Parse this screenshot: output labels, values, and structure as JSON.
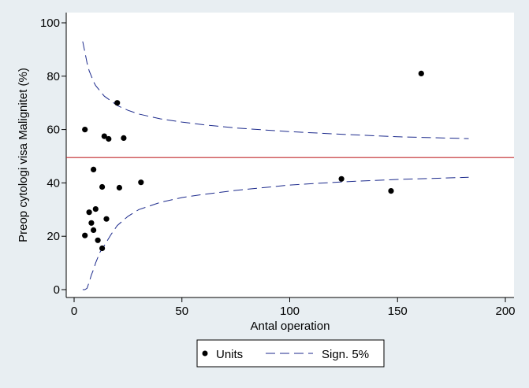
{
  "chart_data": {
    "type": "scatter",
    "title": "",
    "xlabel": "Antal operation",
    "ylabel": "Preop cytologi visa Malignitet (%)",
    "xlim": [
      0,
      200
    ],
    "ylim": [
      0,
      100
    ],
    "xticks": [
      0,
      50,
      100,
      150,
      200
    ],
    "yticks": [
      0,
      20,
      40,
      60,
      80,
      100
    ],
    "grid": false,
    "legend_position": "bottom-center",
    "reference_line": {
      "y": 49.5,
      "color": "#c0282c"
    },
    "series": [
      {
        "name": "Units",
        "kind": "scatter",
        "color": "#000000",
        "points": [
          {
            "x": 5,
            "y": 60
          },
          {
            "x": 14,
            "y": 57.5
          },
          {
            "x": 16,
            "y": 56.5
          },
          {
            "x": 23,
            "y": 56.8
          },
          {
            "x": 20,
            "y": 70
          },
          {
            "x": 161,
            "y": 81
          },
          {
            "x": 9,
            "y": 45
          },
          {
            "x": 13,
            "y": 38.5
          },
          {
            "x": 21,
            "y": 38.2
          },
          {
            "x": 31,
            "y": 40.2
          },
          {
            "x": 124,
            "y": 41.5
          },
          {
            "x": 147,
            "y": 37
          },
          {
            "x": 10,
            "y": 30.2
          },
          {
            "x": 7,
            "y": 29
          },
          {
            "x": 15,
            "y": 26.5
          },
          {
            "x": 8,
            "y": 25
          },
          {
            "x": 9,
            "y": 22.3
          },
          {
            "x": 5,
            "y": 20.3
          },
          {
            "x": 11,
            "y": 18.5
          },
          {
            "x": 13,
            "y": 15.5
          }
        ]
      },
      {
        "name": "Sign. 5%",
        "kind": "line",
        "color": "#1c2a8c",
        "dash": true,
        "bands": [
          {
            "side": "upper",
            "x": [
              4,
              5,
              6,
              7,
              8,
              9,
              10,
              12,
              14,
              17,
              20,
              25,
              30,
              40,
              50,
              60,
              75,
              100,
              125,
              150,
              183
            ],
            "y": [
              93,
              89,
              85,
              82,
              80,
              78,
              76.5,
              74.5,
              72.5,
              70.8,
              69,
              67.2,
              65.8,
              64,
              62.8,
              61.8,
              60.6,
              59.2,
              58.2,
              57.3,
              56.6
            ]
          },
          {
            "side": "lower",
            "x": [
              4,
              5,
              6,
              7,
              8,
              9,
              10,
              12,
              14,
              17,
              20,
              25,
              30,
              40,
              50,
              60,
              75,
              100,
              125,
              150,
              183
            ],
            "y": [
              0,
              0,
              0.5,
              2.8,
              5.5,
              7.5,
              10,
              14,
              16.5,
              20.5,
              24,
              27.5,
              30,
              32.7,
              34.5,
              35.7,
              37.2,
              39.2,
              40.4,
              41.3,
              42.1
            ]
          }
        ]
      }
    ]
  }
}
